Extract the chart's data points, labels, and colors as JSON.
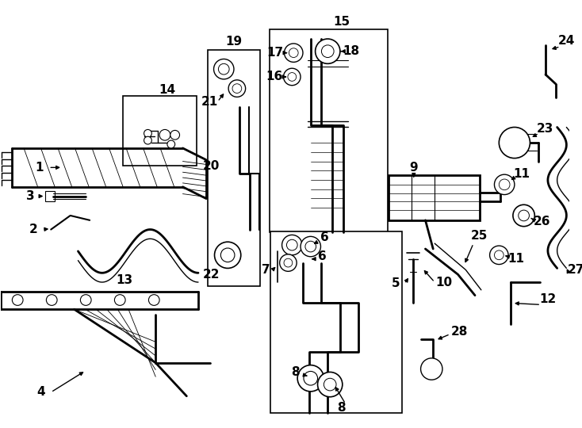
{
  "bg_color": "#ffffff",
  "line_color": "#000000",
  "fig_width": 7.34,
  "fig_height": 5.4,
  "dpi": 100
}
